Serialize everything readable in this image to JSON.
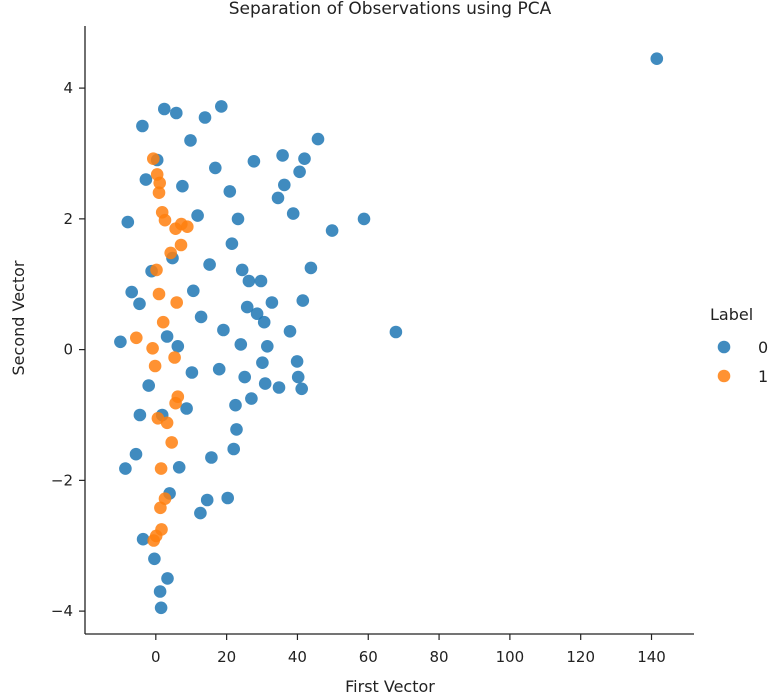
{
  "chart_data": {
    "type": "scatter",
    "title": "Separation of Observations using PCA",
    "xlabel": "First Vector",
    "ylabel": "Second Vector",
    "xlim": [
      -20,
      152
    ],
    "ylim": [
      -4.35,
      4.95
    ],
    "x_ticks": [
      0,
      20,
      40,
      60,
      80,
      100,
      120,
      140
    ],
    "y_ticks": [
      -4,
      -2,
      0,
      2,
      4
    ],
    "x_tick_labels": [
      "0",
      "20",
      "40",
      "60",
      "80",
      "100",
      "120",
      "140"
    ],
    "y_tick_labels": [
      "−4",
      "−2",
      "0",
      "2",
      "4"
    ],
    "grid": false,
    "legend": {
      "title": "Label",
      "placement": "right"
    },
    "series": [
      {
        "name": "0",
        "color": "#1f77b4",
        "points": [
          [
            141.5,
            4.45
          ],
          [
            67.8,
            0.27
          ],
          [
            58.8,
            2.0
          ],
          [
            49.8,
            1.82
          ],
          [
            45.8,
            3.22
          ],
          [
            43.8,
            1.25
          ],
          [
            42.0,
            2.92
          ],
          [
            41.5,
            0.75
          ],
          [
            41.2,
            -0.6
          ],
          [
            40.6,
            2.72
          ],
          [
            40.2,
            -0.42
          ],
          [
            39.9,
            -0.18
          ],
          [
            38.8,
            2.08
          ],
          [
            37.9,
            0.28
          ],
          [
            36.3,
            2.52
          ],
          [
            35.8,
            2.97
          ],
          [
            34.8,
            -0.58
          ],
          [
            34.5,
            2.32
          ],
          [
            32.8,
            0.72
          ],
          [
            31.5,
            0.05
          ],
          [
            30.9,
            -0.52
          ],
          [
            30.6,
            0.42
          ],
          [
            30.1,
            -0.2
          ],
          [
            29.7,
            1.05
          ],
          [
            28.6,
            0.55
          ],
          [
            27.7,
            2.88
          ],
          [
            27.0,
            -0.75
          ],
          [
            26.3,
            1.05
          ],
          [
            25.8,
            0.65
          ],
          [
            25.1,
            -0.42
          ],
          [
            24.4,
            1.22
          ],
          [
            23.2,
            2.0
          ],
          [
            22.8,
            -1.22
          ],
          [
            22.0,
            -1.52
          ],
          [
            21.5,
            1.62
          ],
          [
            20.9,
            2.42
          ],
          [
            20.3,
            -2.27
          ],
          [
            18.5,
            3.72
          ],
          [
            17.9,
            -0.3
          ],
          [
            16.8,
            2.78
          ],
          [
            15.7,
            -1.65
          ],
          [
            14.5,
            -2.3
          ],
          [
            13.9,
            3.55
          ],
          [
            12.6,
            -2.5
          ],
          [
            11.8,
            2.05
          ],
          [
            10.6,
            0.9
          ],
          [
            9.8,
            3.2
          ],
          [
            8.7,
            -0.9
          ],
          [
            7.5,
            2.5
          ],
          [
            6.6,
            -1.8
          ],
          [
            5.8,
            3.62
          ],
          [
            4.7,
            1.4
          ],
          [
            3.9,
            -2.2
          ],
          [
            3.2,
            0.2
          ],
          [
            2.4,
            3.68
          ],
          [
            1.8,
            -1.0
          ],
          [
            1.2,
            -3.7
          ],
          [
            1.5,
            -3.95
          ],
          [
            0.4,
            2.9
          ],
          [
            -0.4,
            -3.2
          ],
          [
            -1.2,
            1.2
          ],
          [
            -2.0,
            -0.55
          ],
          [
            -2.8,
            2.6
          ],
          [
            -3.6,
            -2.9
          ],
          [
            -4.6,
            0.7
          ],
          [
            -5.6,
            -1.6
          ],
          [
            -6.8,
            0.88
          ],
          [
            -7.9,
            1.95
          ],
          [
            -8.6,
            -1.82
          ],
          [
            -10.0,
            0.12
          ],
          [
            -4.5,
            -1.0
          ],
          [
            -3.8,
            3.42
          ],
          [
            3.3,
            -3.5
          ],
          [
            6.2,
            0.05
          ],
          [
            10.2,
            -0.35
          ],
          [
            12.8,
            0.5
          ],
          [
            15.2,
            1.3
          ],
          [
            19.1,
            0.3
          ],
          [
            22.5,
            -0.85
          ],
          [
            24.0,
            0.08
          ]
        ]
      },
      {
        "name": "1",
        "color": "#ff7f0e",
        "points": [
          [
            -5.5,
            0.18
          ],
          [
            -0.7,
            2.92
          ],
          [
            0.4,
            2.68
          ],
          [
            0.9,
            2.4
          ],
          [
            1.8,
            2.1
          ],
          [
            2.6,
            1.98
          ],
          [
            5.6,
            1.85
          ],
          [
            7.2,
            1.92
          ],
          [
            8.9,
            1.88
          ],
          [
            7.1,
            1.6
          ],
          [
            4.2,
            1.48
          ],
          [
            5.9,
            0.72
          ],
          [
            5.3,
            -0.12
          ],
          [
            5.6,
            -0.82
          ],
          [
            6.2,
            -0.72
          ],
          [
            4.5,
            -1.42
          ],
          [
            2.6,
            -2.28
          ],
          [
            1.3,
            -2.42
          ],
          [
            -0.6,
            -2.92
          ],
          [
            0.1,
            -2.85
          ],
          [
            1.6,
            -2.75
          ],
          [
            0.6,
            -1.05
          ],
          [
            -0.2,
            -0.25
          ],
          [
            0.9,
            0.85
          ],
          [
            0.2,
            1.22
          ],
          [
            -0.9,
            0.02
          ],
          [
            1.5,
            -1.82
          ],
          [
            2.1,
            0.42
          ],
          [
            3.2,
            -1.12
          ],
          [
            1.1,
            2.55
          ]
        ]
      }
    ]
  }
}
